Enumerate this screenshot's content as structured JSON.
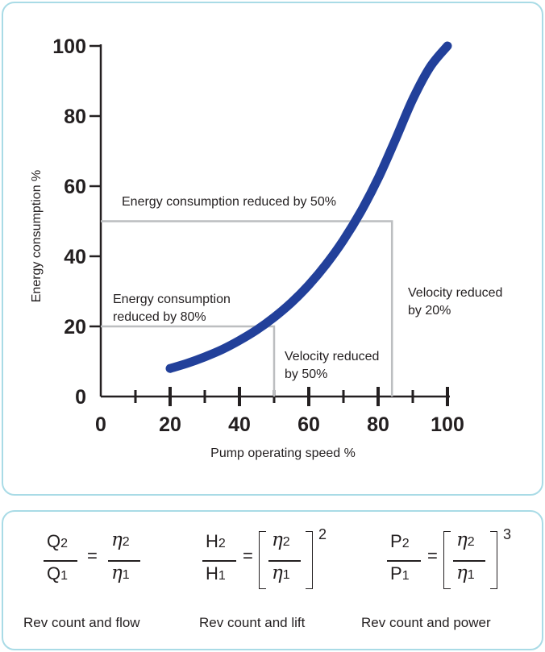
{
  "chart_data": {
    "type": "line",
    "xlabel": "Pump operating speed %",
    "ylabel": "Energy consumption %",
    "xlim": [
      0,
      100
    ],
    "ylim": [
      0,
      100
    ],
    "x_ticks": [
      "0",
      "20",
      "40",
      "60",
      "80",
      "100"
    ],
    "y_ticks": [
      "0",
      "20",
      "40",
      "60",
      "80",
      "100"
    ],
    "x_minor_ticks": [
      10,
      30,
      50,
      70,
      90
    ],
    "series": [
      {
        "color": "#22409a",
        "x": [
          20,
          25,
          30,
          35,
          40,
          45,
          50,
          55,
          60,
          65,
          70,
          75,
          80,
          85,
          90,
          95,
          100
        ],
        "y": [
          8,
          9.5,
          11.3,
          13.4,
          16,
          19,
          22.6,
          26.8,
          31.8,
          37.7,
          44.6,
          52.7,
          62.2,
          73.3,
          84.8,
          94,
          100
        ]
      }
    ],
    "reference_lines": [
      {
        "x": 50,
        "y": 20
      },
      {
        "x": 84,
        "y": 50
      }
    ],
    "annotations": {
      "energy_50": "Energy consumption reduced by 50%",
      "energy_80_line1": "Energy consumption",
      "energy_80_line2": "reduced by 80%",
      "velocity_20_line1": "Velocity reduced",
      "velocity_20_line2": "by 20%",
      "velocity_50_line1": "Velocity reduced",
      "velocity_50_line2": "by 50%"
    },
    "grid": false,
    "legend": "none"
  },
  "formulas": [
    {
      "num": "Q",
      "den": "Q",
      "num_sub": "2",
      "den_sub": "1",
      "eta": "η",
      "eta_num_sub": "2",
      "eta_den_sub": "1",
      "exponent": "",
      "caption": "Rev count and flow"
    },
    {
      "num": "H",
      "den": "H",
      "num_sub": "2",
      "den_sub": "1",
      "eta": "η",
      "eta_num_sub": "2",
      "eta_den_sub": "1",
      "exponent": "2",
      "caption": "Rev count and lift"
    },
    {
      "num": "P",
      "den": "P",
      "num_sub": "2",
      "den_sub": "1",
      "eta": "η",
      "eta_num_sub": "2",
      "eta_den_sub": "1",
      "exponent": "3",
      "caption": "Rev count and power"
    }
  ],
  "equals": "=",
  "colors": {
    "curve": "#22409a",
    "panel_border": "#a9dbe6",
    "ref_line": "#bcbec0",
    "axis": "#231f20"
  }
}
